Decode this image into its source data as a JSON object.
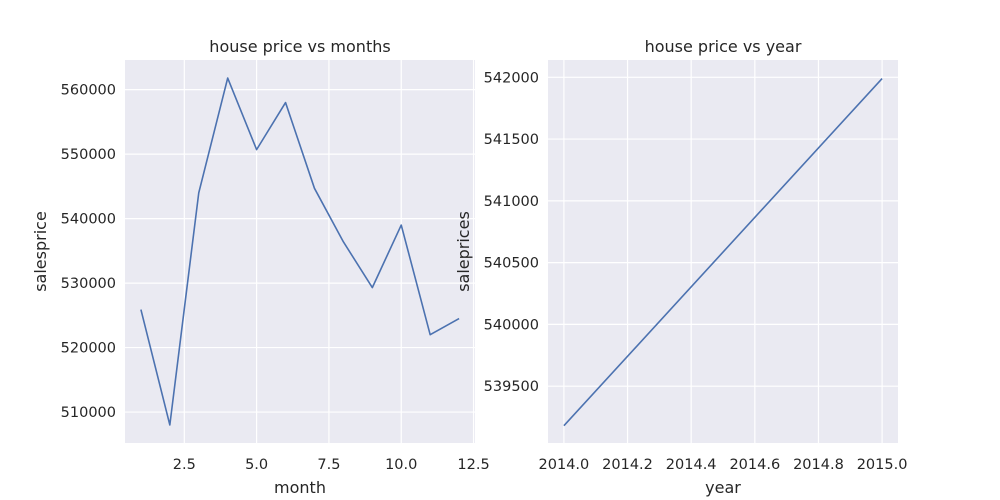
{
  "chart_data": [
    {
      "type": "line",
      "title": "house price vs months",
      "xlabel": "month",
      "ylabel": "salesprice",
      "xlim": [
        0.45,
        12.55
      ],
      "ylim": [
        505200,
        564600
      ],
      "xticks": [
        2.5,
        5.0,
        7.5,
        10.0,
        12.5
      ],
      "xtick_labels": [
        "2.5",
        "5.0",
        "7.5",
        "10.0",
        "12.5"
      ],
      "yticks": [
        510000,
        520000,
        530000,
        540000,
        550000,
        560000
      ],
      "ytick_labels": [
        "510000",
        "520000",
        "530000",
        "540000",
        "550000",
        "560000"
      ],
      "grid": true,
      "line_color": "#4c72b0",
      "background": "#eaeaf2",
      "series": [
        {
          "x": [
            1,
            2,
            3,
            4,
            5,
            6,
            7,
            8,
            9,
            10,
            11,
            12
          ],
          "values": [
            525900,
            508000,
            544000,
            561800,
            550700,
            558000,
            544700,
            536400,
            529300,
            539000,
            522000,
            524500
          ]
        }
      ]
    },
    {
      "type": "line",
      "title": "house price vs year",
      "xlabel": "year",
      "ylabel": "saleprices",
      "xlim": [
        2013.95,
        2015.05
      ],
      "ylim": [
        539040,
        542140
      ],
      "xticks": [
        2014.0,
        2014.2,
        2014.4,
        2014.6,
        2014.8,
        2015.0
      ],
      "xtick_labels": [
        "2014.0",
        "2014.2",
        "2014.4",
        "2014.6",
        "2014.8",
        "2015.0"
      ],
      "yticks": [
        539500,
        540000,
        540500,
        541000,
        541500,
        542000
      ],
      "ytick_labels": [
        "539500",
        "540000",
        "540500",
        "541000",
        "541500",
        "542000"
      ],
      "grid": true,
      "line_color": "#4c72b0",
      "background": "#eaeaf2",
      "series": [
        {
          "x": [
            2014.0,
            2015.0
          ],
          "values": [
            539180,
            541990
          ]
        }
      ]
    }
  ]
}
